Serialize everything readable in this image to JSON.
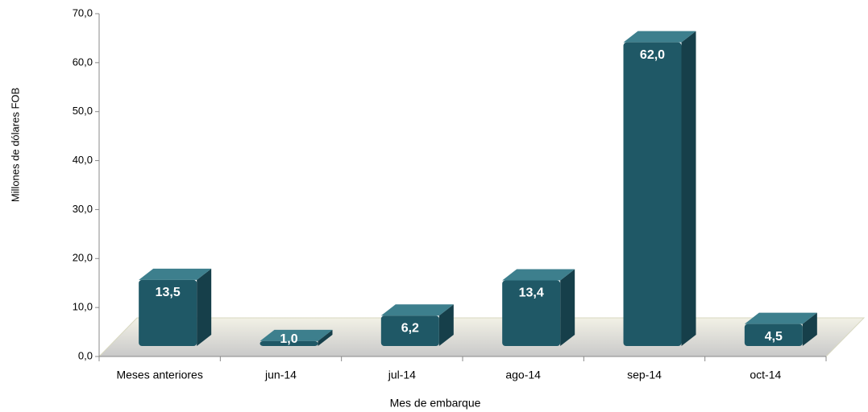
{
  "chart_data": {
    "type": "bar",
    "x_label": "Mes de embarque",
    "y_label": "Millones de dólares FOB",
    "categories": [
      "Meses anteriores",
      "jun-14",
      "jul-14",
      "ago-14",
      "sep-14",
      "oct-14"
    ],
    "values": [
      13.5,
      1.0,
      6.2,
      13.4,
      62.0,
      4.5
    ],
    "value_labels": [
      "13,5",
      "1,0",
      "6,2",
      "13,4",
      "62,0",
      "4,5"
    ],
    "color": "#1f5866",
    "ylim": [
      0,
      70
    ],
    "yticks": [
      {
        "value": 0,
        "label": "0,0"
      },
      {
        "value": 10,
        "label": "10,0"
      },
      {
        "value": 20,
        "label": "20,0"
      },
      {
        "value": 30,
        "label": "30,0"
      },
      {
        "value": 40,
        "label": "40,0"
      },
      {
        "value": 50,
        "label": "50,0"
      },
      {
        "value": 60,
        "label": "60,0"
      },
      {
        "value": 70,
        "label": "70,0"
      }
    ]
  }
}
